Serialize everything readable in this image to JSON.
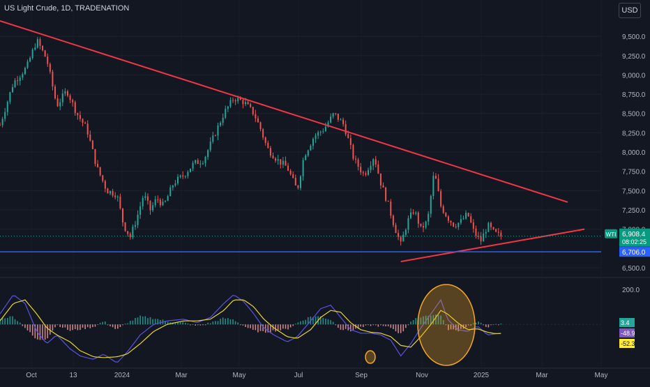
{
  "symbol_title": "US Light Crude, 1D, TRADENATION",
  "currency_button": "USD",
  "price_badge": {
    "symbol": "WTI",
    "price": "6,908.4",
    "countdown": "08:02:25",
    "color": "#089981"
  },
  "level_badge": {
    "price": "6,706.0",
    "color": "#2962ff"
  },
  "oscillator_badges": [
    {
      "value": "3.4",
      "color": "#26a69a",
      "text_color": "#ffffff"
    },
    {
      "value": "-48.9",
      "color": "#7e57c2",
      "text_color": "#ffffff"
    },
    {
      "value": "-52.3",
      "color": "#ffeb3b",
      "text_color": "#131722"
    }
  ],
  "colors": {
    "up": "#26a69a",
    "down": "#ef5350",
    "trendline": "#f23645",
    "support": "#2962ff",
    "macd": "#5b52e0",
    "signal": "#e8d62a",
    "highlight": "#f5a623"
  },
  "chart_data": [
    {
      "type": "candlestick",
      "x_axis_labels": [
        "Oct",
        "13",
        "2024",
        "Mar",
        "May",
        "Jul",
        "Sep",
        "Nov",
        "2025",
        "Mar",
        "May"
      ],
      "y_axis_labels": [
        "9,500.0",
        "9,250.0",
        "9,000.0",
        "8,750.0",
        "8,500.0",
        "8,250.0",
        "8,000.0",
        "7,750.0",
        "7,500.0",
        "7,250.0",
        "7,000.0",
        "6,500.0"
      ],
      "ylim": [
        6400,
        9700
      ],
      "last_price": 6908.4,
      "horizontal_level": 6706.0,
      "close_path": [
        [
          0,
          8350
        ],
        [
          8,
          8900
        ],
        [
          16,
          9100
        ],
        [
          22,
          9450
        ],
        [
          28,
          9200
        ],
        [
          34,
          8600
        ],
        [
          40,
          8800
        ],
        [
          46,
          8500
        ],
        [
          52,
          8300
        ],
        [
          58,
          7800
        ],
        [
          64,
          7500
        ],
        [
          70,
          7450
        ],
        [
          74,
          7050
        ],
        [
          78,
          6900
        ],
        [
          82,
          7150
        ],
        [
          86,
          7450
        ],
        [
          90,
          7250
        ],
        [
          94,
          7400
        ],
        [
          98,
          7300
        ],
        [
          104,
          7600
        ],
        [
          110,
          7700
        ],
        [
          116,
          7850
        ],
        [
          122,
          7900
        ],
        [
          128,
          8200
        ],
        [
          134,
          8500
        ],
        [
          140,
          8700
        ],
        [
          146,
          8650
        ],
        [
          152,
          8500
        ],
        [
          156,
          8300
        ],
        [
          160,
          8050
        ],
        [
          166,
          7900
        ],
        [
          172,
          7800
        ],
        [
          178,
          7500
        ],
        [
          182,
          7950
        ],
        [
          188,
          8200
        ],
        [
          194,
          8300
        ],
        [
          200,
          8500
        ],
        [
          206,
          8350
        ],
        [
          212,
          7900
        ],
        [
          218,
          7700
        ],
        [
          224,
          7950
        ],
        [
          228,
          7600
        ],
        [
          232,
          7350
        ],
        [
          236,
          7050
        ],
        [
          240,
          6800
        ],
        [
          244,
          7100
        ],
        [
          248,
          7250
        ],
        [
          252,
          7000
        ],
        [
          256,
          7100
        ],
        [
          260,
          7750
        ],
        [
          264,
          7300
        ],
        [
          268,
          7150
        ],
        [
          272,
          7050
        ],
        [
          276,
          7100
        ],
        [
          280,
          7200
        ],
        [
          284,
          6950
        ],
        [
          288,
          6850
        ],
        [
          292,
          7050
        ],
        [
          296,
          6950
        ],
        [
          300,
          6908
        ]
      ],
      "trendlines": [
        {
          "from": [
            0,
            9700
          ],
          "to": [
            340,
            7350
          ]
        },
        {
          "from": [
            240,
            6580
          ],
          "to": [
            350,
            7000
          ]
        }
      ]
    },
    {
      "type": "macd",
      "y_axis_labels": [
        "200.0"
      ],
      "ylim": [
        -250,
        260
      ],
      "macd_path": [
        [
          0,
          60
        ],
        [
          8,
          170
        ],
        [
          15,
          120
        ],
        [
          22,
          -40
        ],
        [
          28,
          -110
        ],
        [
          34,
          -60
        ],
        [
          42,
          -140
        ],
        [
          48,
          -180
        ],
        [
          56,
          -200
        ],
        [
          62,
          -170
        ],
        [
          70,
          -220
        ],
        [
          76,
          -160
        ],
        [
          84,
          -60
        ],
        [
          92,
          0
        ],
        [
          100,
          20
        ],
        [
          110,
          30
        ],
        [
          118,
          10
        ],
        [
          126,
          40
        ],
        [
          134,
          120
        ],
        [
          140,
          170
        ],
        [
          146,
          130
        ],
        [
          152,
          60
        ],
        [
          158,
          -20
        ],
        [
          164,
          -60
        ],
        [
          172,
          -100
        ],
        [
          178,
          -70
        ],
        [
          186,
          20
        ],
        [
          192,
          90
        ],
        [
          198,
          110
        ],
        [
          204,
          40
        ],
        [
          210,
          -30
        ],
        [
          216,
          -50
        ],
        [
          222,
          -50
        ],
        [
          228,
          -60
        ],
        [
          234,
          -90
        ],
        [
          240,
          -180
        ],
        [
          246,
          -110
        ],
        [
          252,
          -20
        ],
        [
          258,
          60
        ],
        [
          264,
          140
        ],
        [
          268,
          30
        ],
        [
          274,
          -30
        ],
        [
          280,
          -40
        ],
        [
          286,
          -10
        ],
        [
          292,
          -60
        ],
        [
          296,
          -55
        ],
        [
          300,
          -50
        ]
      ],
      "signal_path": [
        [
          0,
          20
        ],
        [
          8,
          120
        ],
        [
          15,
          140
        ],
        [
          22,
          60
        ],
        [
          28,
          -20
        ],
        [
          34,
          -60
        ],
        [
          42,
          -100
        ],
        [
          48,
          -150
        ],
        [
          56,
          -185
        ],
        [
          62,
          -190
        ],
        [
          70,
          -185
        ],
        [
          76,
          -170
        ],
        [
          84,
          -110
        ],
        [
          92,
          -40
        ],
        [
          100,
          0
        ],
        [
          110,
          20
        ],
        [
          118,
          20
        ],
        [
          126,
          30
        ],
        [
          134,
          80
        ],
        [
          140,
          140
        ],
        [
          146,
          140
        ],
        [
          152,
          100
        ],
        [
          158,
          30
        ],
        [
          164,
          -20
        ],
        [
          172,
          -70
        ],
        [
          178,
          -80
        ],
        [
          186,
          -30
        ],
        [
          192,
          40
        ],
        [
          198,
          80
        ],
        [
          204,
          70
        ],
        [
          210,
          10
        ],
        [
          216,
          -30
        ],
        [
          222,
          -45
        ],
        [
          228,
          -50
        ],
        [
          234,
          -70
        ],
        [
          240,
          -120
        ],
        [
          246,
          -130
        ],
        [
          252,
          -70
        ],
        [
          258,
          0
        ],
        [
          264,
          80
        ],
        [
          268,
          60
        ],
        [
          274,
          10
        ],
        [
          280,
          -30
        ],
        [
          286,
          -25
        ],
        [
          292,
          -45
        ],
        [
          296,
          -52
        ],
        [
          300,
          -52
        ]
      ]
    }
  ]
}
